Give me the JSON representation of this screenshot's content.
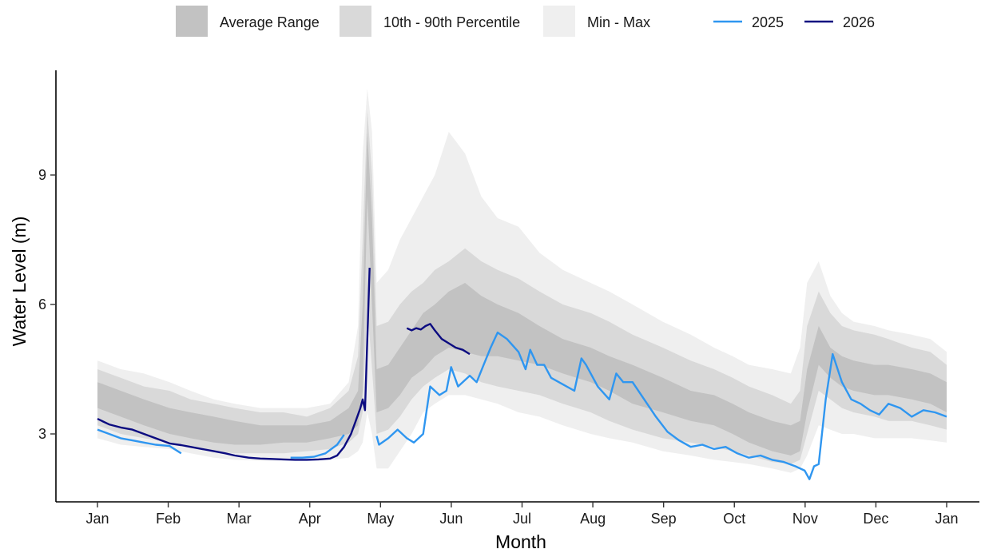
{
  "chart_data": {
    "type": "line",
    "xlabel": "Month",
    "ylabel": "Water Level (m)",
    "x_ticks": [
      "Jan",
      "Feb",
      "Mar",
      "Apr",
      "May",
      "Jun",
      "Jul",
      "Aug",
      "Sep",
      "Oct",
      "Nov",
      "Dec",
      "Jan"
    ],
    "y_ticks": [
      3,
      6,
      9
    ],
    "xlim": [
      0,
      365
    ],
    "ylim": [
      1.6,
      11.0
    ],
    "grid": false,
    "legend_position": "top",
    "legend": {
      "bands": [
        {
          "label": "Average Range",
          "color": "#c2c2c2"
        },
        {
          "label": "10th - 90th Percentile",
          "color": "#d9d9d9"
        },
        {
          "label": "Min - Max",
          "color": "#efefef"
        }
      ],
      "lines": [
        {
          "label": "2025",
          "color": "#2f96f0"
        },
        {
          "label": "2026",
          "color": "#0b0b80"
        }
      ]
    },
    "bands": {
      "x": [
        0,
        10,
        20,
        31,
        40,
        50,
        59,
        70,
        80,
        90,
        100,
        108,
        112,
        114,
        116,
        118,
        120,
        125,
        130,
        135,
        140,
        145,
        151,
        158,
        165,
        172,
        181,
        190,
        200,
        212,
        220,
        230,
        243,
        255,
        265,
        273,
        280,
        290,
        298,
        302,
        305,
        310,
        315,
        320,
        325,
        334,
        340,
        350,
        358,
        365
      ],
      "avg_low": [
        3.6,
        3.4,
        3.2,
        3.0,
        2.9,
        2.8,
        2.75,
        2.75,
        2.8,
        2.8,
        2.9,
        3.0,
        3.2,
        4.0,
        8.5,
        6.0,
        3.5,
        3.6,
        3.9,
        4.3,
        4.5,
        4.8,
        5.0,
        4.9,
        4.8,
        4.8,
        4.7,
        4.6,
        4.4,
        4.2,
        4.0,
        3.7,
        3.5,
        3.3,
        3.2,
        3.0,
        2.8,
        2.6,
        2.5,
        2.6,
        3.5,
        4.6,
        4.3,
        4.1,
        4.0,
        3.9,
        3.9,
        3.8,
        3.7,
        3.5
      ],
      "avg_high": [
        4.2,
        4.0,
        3.8,
        3.6,
        3.5,
        3.4,
        3.3,
        3.2,
        3.2,
        3.2,
        3.3,
        3.6,
        4.0,
        6.0,
        10.0,
        8.0,
        4.5,
        4.6,
        5.0,
        5.4,
        5.8,
        6.0,
        6.3,
        6.5,
        6.2,
        6.0,
        5.8,
        5.5,
        5.2,
        5.0,
        4.8,
        4.6,
        4.3,
        4.0,
        3.9,
        3.7,
        3.5,
        3.3,
        3.2,
        3.3,
        4.5,
        5.5,
        5.0,
        4.8,
        4.7,
        4.6,
        4.6,
        4.5,
        4.4,
        4.2
      ],
      "p_low": [
        3.2,
        3.0,
        2.9,
        2.8,
        2.7,
        2.6,
        2.55,
        2.55,
        2.55,
        2.6,
        2.65,
        2.8,
        3.0,
        3.5,
        6.0,
        4.5,
        3.0,
        3.1,
        3.4,
        3.8,
        4.1,
        4.3,
        4.5,
        4.4,
        4.2,
        4.1,
        4.0,
        3.9,
        3.7,
        3.5,
        3.3,
        3.1,
        2.9,
        2.8,
        2.7,
        2.6,
        2.5,
        2.35,
        2.3,
        2.4,
        3.0,
        4.0,
        3.8,
        3.6,
        3.5,
        3.4,
        3.3,
        3.3,
        3.2,
        3.1
      ],
      "p_high": [
        4.5,
        4.3,
        4.1,
        4.0,
        3.8,
        3.7,
        3.6,
        3.5,
        3.5,
        3.4,
        3.6,
        4.0,
        4.8,
        7.5,
        10.5,
        9.0,
        5.5,
        5.6,
        6.0,
        6.3,
        6.5,
        6.8,
        7.0,
        7.3,
        7.0,
        6.8,
        6.6,
        6.3,
        6.0,
        5.8,
        5.6,
        5.3,
        5.0,
        4.7,
        4.5,
        4.3,
        4.1,
        3.9,
        3.7,
        4.0,
        5.5,
        6.3,
        5.8,
        5.5,
        5.4,
        5.3,
        5.2,
        5.0,
        4.9,
        4.6
      ],
      "min": [
        2.9,
        2.75,
        2.7,
        2.65,
        2.55,
        2.45,
        2.4,
        2.38,
        2.38,
        2.38,
        2.4,
        2.45,
        2.6,
        2.8,
        3.5,
        3.0,
        2.2,
        2.2,
        2.6,
        3.0,
        3.5,
        3.7,
        3.9,
        3.9,
        3.8,
        3.7,
        3.5,
        3.4,
        3.2,
        3.0,
        2.9,
        2.8,
        2.6,
        2.5,
        2.4,
        2.35,
        2.3,
        2.2,
        2.1,
        2.2,
        2.5,
        3.2,
        3.1,
        3.0,
        3.0,
        2.9,
        2.9,
        2.9,
        2.85,
        2.8
      ],
      "max": [
        4.7,
        4.5,
        4.4,
        4.2,
        4.0,
        3.8,
        3.7,
        3.6,
        3.6,
        3.6,
        3.7,
        4.2,
        5.5,
        9.5,
        11.0,
        10.0,
        6.5,
        6.8,
        7.5,
        8.0,
        8.5,
        9.0,
        10.0,
        9.5,
        8.5,
        8.0,
        7.8,
        7.2,
        6.8,
        6.5,
        6.3,
        6.0,
        5.6,
        5.3,
        5.0,
        4.8,
        4.6,
        4.5,
        4.4,
        5.0,
        6.5,
        7.0,
        6.2,
        5.8,
        5.6,
        5.5,
        5.4,
        5.3,
        5.2,
        4.9
      ]
    },
    "series": [
      {
        "name": "2025",
        "color": "#2f96f0",
        "segments": [
          {
            "x": [
              0,
              5,
              10,
              15,
              20,
              25,
              31,
              36
            ],
            "y": [
              3.1,
              3.0,
              2.9,
              2.85,
              2.8,
              2.75,
              2.72,
              2.55
            ]
          },
          {
            "x": [
              83,
              88,
              93,
              98,
              103,
              106
            ],
            "y": [
              2.45,
              2.45,
              2.47,
              2.55,
              2.75,
              2.98
            ]
          },
          {
            "x": [
              120,
              121,
              125,
              129,
              133,
              136,
              140,
              143,
              147,
              150,
              152,
              155,
              160,
              163,
              166,
              169,
              172,
              176,
              181,
              184,
              186,
              189,
              192,
              195,
              200,
              205,
              208,
              210,
              215,
              220,
              223,
              226,
              230,
              235,
              240,
              245,
              250,
              255,
              260,
              265,
              270,
              275,
              280,
              285,
              290,
              295,
              300,
              304,
              306,
              308,
              310,
              313,
              316,
              320,
              324,
              328,
              332,
              336,
              340,
              345,
              350,
              355,
              360,
              365
            ],
            "y": [
              2.95,
              2.75,
              2.9,
              3.1,
              2.9,
              2.8,
              3.0,
              4.1,
              3.9,
              4.0,
              4.55,
              4.1,
              4.35,
              4.2,
              4.6,
              5.0,
              5.35,
              5.2,
              4.9,
              4.5,
              4.95,
              4.6,
              4.6,
              4.3,
              4.15,
              4.0,
              4.75,
              4.6,
              4.1,
              3.8,
              4.4,
              4.2,
              4.2,
              3.8,
              3.4,
              3.05,
              2.85,
              2.7,
              2.75,
              2.65,
              2.7,
              2.55,
              2.45,
              2.5,
              2.4,
              2.35,
              2.25,
              2.15,
              1.95,
              2.25,
              2.3,
              3.8,
              4.85,
              4.2,
              3.8,
              3.7,
              3.55,
              3.45,
              3.7,
              3.6,
              3.4,
              3.55,
              3.5,
              3.4
            ]
          }
        ]
      },
      {
        "name": "2026",
        "color": "#0b0b80",
        "segments": [
          {
            "x": [
              0,
              5,
              10,
              15,
              20,
              25,
              31,
              36,
              40,
              45,
              50,
              55,
              59,
              65,
              70,
              75,
              80,
              85,
              90,
              95,
              100,
              103,
              106,
              109,
              111,
              113,
              114,
              115,
              117
            ],
            "y": [
              3.35,
              3.22,
              3.15,
              3.1,
              3.0,
              2.9,
              2.78,
              2.74,
              2.7,
              2.65,
              2.6,
              2.55,
              2.5,
              2.45,
              2.43,
              2.42,
              2.41,
              2.4,
              2.4,
              2.41,
              2.43,
              2.5,
              2.7,
              3.0,
              3.3,
              3.6,
              3.8,
              3.55,
              6.85
            ]
          },
          {
            "x": [
              133,
              135,
              137,
              139,
              141,
              143,
              145,
              148,
              151,
              154,
              157,
              160
            ],
            "y": [
              5.45,
              5.4,
              5.45,
              5.42,
              5.5,
              5.55,
              5.4,
              5.2,
              5.1,
              5.0,
              4.95,
              4.85
            ]
          }
        ]
      }
    ]
  }
}
